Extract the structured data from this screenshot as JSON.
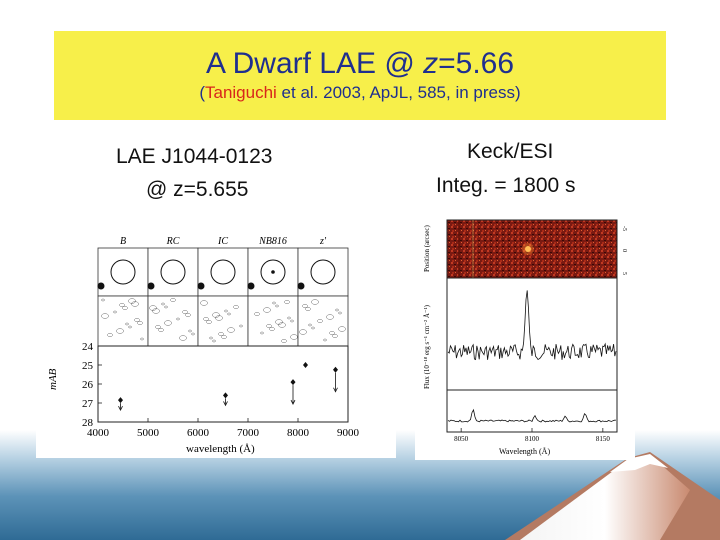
{
  "slide": {
    "title_main": "A Dwarf LAE @ ",
    "title_z": "z",
    "title_value": "=5.66",
    "subtitle_open": "(",
    "subtitle_author": "Taniguchi",
    "subtitle_rest": " et al. 2003, ApJL, 585, in press)",
    "left_label_1": "LAE J1044-0123",
    "left_label_2": "@ z=5.655",
    "right_label_1": "Keck/ESI",
    "right_label_2": "Integ. = 1800 s"
  },
  "colors": {
    "title_bg": "#f7ef4a",
    "title_text": "#1f2f8f",
    "author": "#d8261b"
  },
  "left_figure": {
    "bands": [
      "B",
      "RC",
      "IC",
      "NB816",
      "z'"
    ],
    "ylabel": "mAB",
    "xlabel": "wavelength (Å)"
  },
  "right_figure": {
    "ylabel_top": "Position (arcsec)",
    "ylabel_main": "Flux (10⁻¹⁸ erg s⁻¹ cm⁻² Å⁻¹)",
    "xlabel": "Wavelength (Å)",
    "right_ticks": [
      "-5",
      "0",
      "5"
    ]
  },
  "chart_data": [
    {
      "type": "scatter",
      "xlabel": "wavelength (Å)",
      "ylabel": "mAB",
      "xlim": [
        4000,
        9000
      ],
      "ylim": [
        28,
        24
      ],
      "x_ticks": [
        4000,
        5000,
        6000,
        7000,
        8000,
        9000
      ],
      "y_ticks": [
        24,
        25,
        26,
        27,
        28
      ],
      "points": [
        {
          "x": 4450,
          "y": 26.85,
          "upper_limit": true
        },
        {
          "x": 6550,
          "y": 26.6,
          "upper_limit": true
        },
        {
          "x": 7900,
          "y": 25.9,
          "upper_limit": true
        },
        {
          "x": 8150,
          "y": 25.0,
          "upper_limit": false
        },
        {
          "x": 8750,
          "y": 25.25,
          "upper_limit": true
        }
      ]
    },
    {
      "type": "line",
      "xlabel": "Wavelength (Å)",
      "x_ticks": [
        8050,
        8100,
        8150
      ]
    }
  ]
}
